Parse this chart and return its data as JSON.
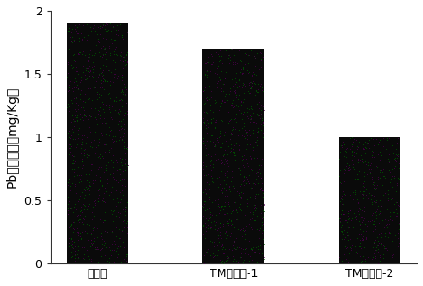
{
  "categories": [
    "对照组",
    "TM固化剑-1",
    "TM固化剑-2"
  ],
  "values": [
    1.9,
    1.7,
    1.0
  ],
  "bar_color": "#0a0a0a",
  "noise_color1": "#006600",
  "noise_color2": "#550055",
  "ylabel": "Pb溶出浓度（mg/Kg）",
  "ylim": [
    0,
    2.0
  ],
  "yticks": [
    0,
    0.5,
    1.0,
    1.5,
    2.0
  ],
  "ytick_labels": [
    "0",
    "0.5",
    "1",
    "1.5",
    "2"
  ],
  "background_color": "#ffffff",
  "bar_width": 0.45,
  "tick_fontsize": 9,
  "label_fontsize": 10,
  "noise_density": 0.15
}
